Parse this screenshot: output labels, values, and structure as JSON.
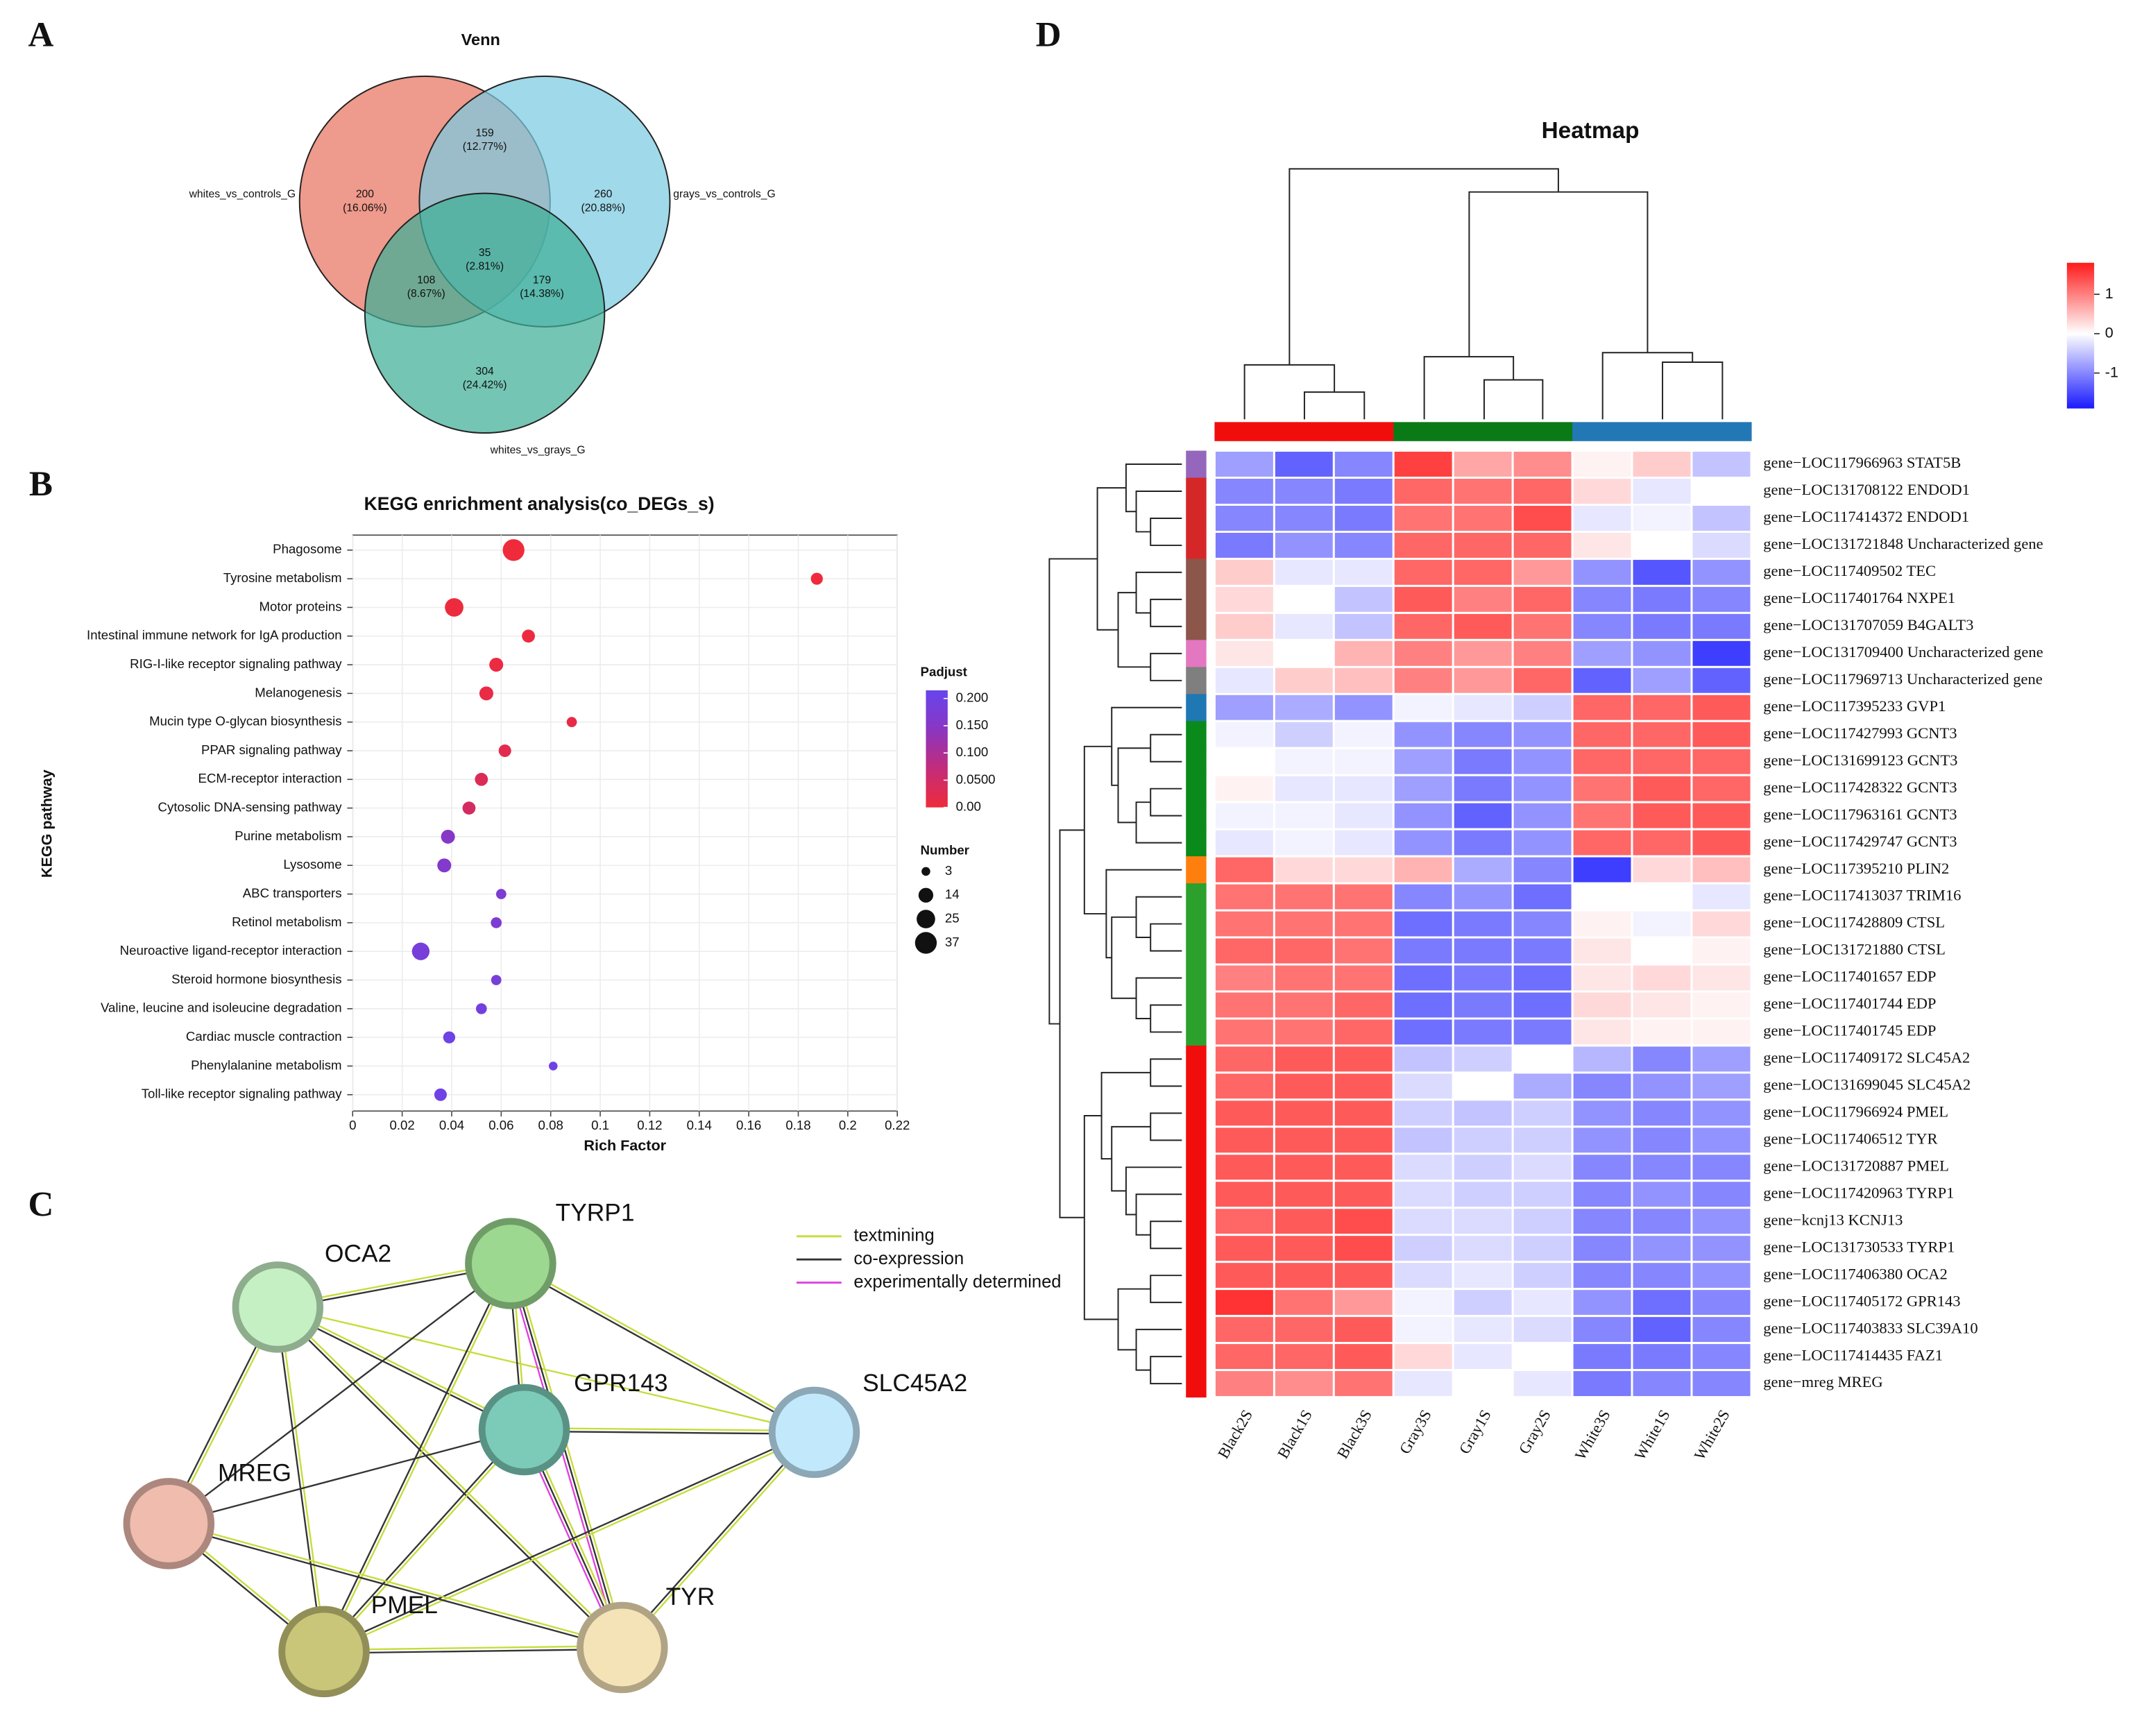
{
  "panel_labels": [
    "A",
    "B",
    "C",
    "D"
  ],
  "chart_data": [
    {
      "type": "venn",
      "title": "Venn",
      "sets": [
        {
          "name": "whites_vs_controls_G",
          "color": "#e8735f"
        },
        {
          "name": "grays_vs_controls_G",
          "color": "#7ccbe0"
        },
        {
          "name": "whites_vs_grays_G",
          "color": "#3fae97"
        }
      ],
      "regions": [
        {
          "count": 200,
          "label": "(16.06%)"
        },
        {
          "count": 159,
          "label": "(12.77%)"
        },
        {
          "count": 260,
          "label": "(20.88%)"
        },
        {
          "count": 35,
          "label": "(2.81%)"
        },
        {
          "count": 108,
          "label": "(8.67%)"
        },
        {
          "count": 179,
          "label": "(14.38%)"
        },
        {
          "count": 304,
          "label": "(24.42%)"
        }
      ]
    },
    {
      "type": "bubble",
      "title": "KEGG enrichment analysis(co_DEGs_s)",
      "y_label": "KEGG pathway",
      "x_label": "Rich Factor",
      "categories": [
        "Phagosome",
        "Tyrosine metabolism",
        "Motor proteins",
        "Intestinal immune network for IgA production",
        "RIG-I-like receptor signaling pathway",
        "Melanogenesis",
        "Mucin type O-glycan biosynthesis",
        "PPAR signaling pathway",
        "ECM-receptor interaction",
        "Cytosolic DNA-sensing pathway",
        "Purine metabolism",
        "Lysosome",
        "ABC transporters",
        "Retinol metabolism",
        "Neuroactive ligand-receptor interaction",
        "Steroid hormone biosynthesis",
        "Valine, leucine and isoleucine degradation",
        "Cardiac muscle contraction",
        "Phenylalanine metabolism",
        "Toll-like receptor signaling pathway"
      ],
      "values": [
        0.065,
        0.1875,
        0.041,
        0.071,
        0.058,
        0.054,
        0.0885,
        0.0615,
        0.052,
        0.047,
        0.0385,
        0.037,
        0.06,
        0.058,
        0.0275,
        0.058,
        0.052,
        0.039,
        0.081,
        0.0355
      ],
      "sizes": [
        37,
        8,
        25,
        10,
        12,
        12,
        5,
        9,
        10,
        10,
        12,
        12,
        5,
        6,
        22,
        5,
        6,
        8,
        3,
        9
      ],
      "padjust": [
        0.0,
        0.002,
        0.003,
        0.005,
        0.008,
        0.01,
        0.012,
        0.02,
        0.03,
        0.045,
        0.15,
        0.16,
        0.17,
        0.17,
        0.18,
        0.18,
        0.19,
        0.2,
        0.2,
        0.2
      ],
      "xlim": [
        0,
        0.22
      ],
      "xticks": [
        0,
        0.02,
        0.04,
        0.06,
        0.08,
        0.1,
        0.12,
        0.14,
        0.16,
        0.18,
        0.2,
        0.22
      ],
      "grid": true,
      "color_title": "Padjust",
      "clim": [
        0,
        0.215
      ],
      "cticks": [
        {
          "value": 0,
          "label": "0.00"
        },
        {
          "value": 0.05,
          "label": "0.0500"
        },
        {
          "value": 0.1,
          "label": "0.100"
        },
        {
          "value": 0.15,
          "label": "0.150"
        },
        {
          "value": 0.2,
          "label": "0.200"
        }
      ],
      "colors": [
        "#ef2b3b",
        "#c22c7a",
        "#8a36c2",
        "#6645ee"
      ],
      "size_title": "Number",
      "size_legend": [
        3,
        14,
        25,
        37
      ]
    },
    {
      "type": "heatmap",
      "title": "Heatmap",
      "columns": [
        "Black2S",
        "Black1S",
        "Black3S",
        "Gray3S",
        "Gray1S",
        "Gray2S",
        "White3S",
        "White1S",
        "White2S"
      ],
      "col_colors": [
        "#f20d0d",
        "#f20d0d",
        "#f20d0d",
        "#0a7a16",
        "#0a7a16",
        "#0a7a16",
        "#2278b5",
        "#2278b5",
        "#2278b5"
      ],
      "rows": [
        "gene−LOC117966963 STAT5B",
        "gene−LOC131708122 ENDOD1",
        "gene−LOC117414372 ENDOD1",
        "gene−LOC131721848 Uncharacterized gene",
        "gene−LOC117409502 TEC",
        "gene−LOC117401764 NXPE1",
        "gene−LOC131707059 B4GALT3",
        "gene−LOC131709400 Uncharacterized gene",
        "gene−LOC117969713 Uncharacterized gene",
        "gene−LOC117395233 GVP1",
        "gene−LOC117427993 GCNT3",
        "gene−LOC131699123 GCNT3",
        "gene−LOC117428322 GCNT3",
        "gene−LOC117963161 GCNT3",
        "gene−LOC117429747 GCNT3",
        "gene−LOC117395210 PLIN2",
        "gene−LOC117413037 TRIM16",
        "gene−LOC117428809 CTSL",
        "gene−LOC131721880 CTSL",
        "gene−LOC117401657 EDP",
        "gene−LOC117401744 EDP",
        "gene−LOC117401745 EDP",
        "gene−LOC117409172 SLC45A2",
        "gene−LOC131699045 SLC45A2",
        "gene−LOC117966924 PMEL",
        "gene−LOC117406512 TYR",
        "gene−LOC131720887 PMEL",
        "gene−LOC117420963 TYRP1",
        "gene−kcnj13 KCNJ13",
        "gene−LOC131730533 TYRP1",
        "gene−LOC117406380 OCA2",
        "gene−LOC117405172 GPR143",
        "gene−LOC117403833 SLC39A10",
        "gene−LOC117414435 FAZ1",
        "gene−mreg MREG"
      ],
      "row_colors": [
        "#9467bd",
        "#d62728",
        "#d62728",
        "#d62728",
        "#8c564b",
        "#8c564b",
        "#8c564b",
        "#e377c2",
        "#7f7f7f",
        "#1f77b4",
        "#0a8a1a",
        "#0a8a1a",
        "#0a8a1a",
        "#0a8a1a",
        "#0a8a1a",
        "#ff7f0e",
        "#2ca02c",
        "#2ca02c",
        "#2ca02c",
        "#2ca02c",
        "#2ca02c",
        "#2ca02c",
        "#f20d0d",
        "#f20d0d",
        "#f20d0d",
        "#f20d0d",
        "#f20d0d",
        "#f20d0d",
        "#f20d0d",
        "#f20d0d",
        "#f20d0d",
        "#f20d0d",
        "#f20d0d",
        "#f20d0d",
        "#f20d0d"
      ],
      "values": [
        [
          -0.8,
          -1.3,
          -1.0,
          1.5,
          0.7,
          0.9,
          0.1,
          0.4,
          -0.5
        ],
        [
          -1.0,
          -1.0,
          -1.1,
          1.2,
          1.1,
          1.2,
          0.3,
          -0.2,
          0.0
        ],
        [
          -1.0,
          -1.0,
          -1.1,
          1.1,
          1.1,
          1.4,
          -0.2,
          -0.1,
          -0.5
        ],
        [
          -1.1,
          -0.9,
          -1.0,
          1.2,
          1.2,
          1.2,
          0.2,
          0.0,
          -0.3
        ],
        [
          0.4,
          -0.2,
          -0.2,
          1.2,
          1.2,
          0.8,
          -0.9,
          -1.4,
          -0.9
        ],
        [
          0.3,
          0.0,
          -0.5,
          1.3,
          1.0,
          1.2,
          -1.0,
          -1.1,
          -1.0
        ],
        [
          0.4,
          -0.2,
          -0.5,
          1.2,
          1.3,
          1.1,
          -1.0,
          -1.1,
          -1.1
        ],
        [
          0.2,
          0.0,
          0.6,
          1.0,
          0.8,
          1.0,
          -0.8,
          -0.9,
          -1.6
        ],
        [
          -0.2,
          0.4,
          0.5,
          1.0,
          0.8,
          1.2,
          -1.3,
          -0.8,
          -1.3
        ],
        [
          -0.8,
          -0.7,
          -0.9,
          -0.1,
          -0.2,
          -0.4,
          1.2,
          1.2,
          1.3
        ],
        [
          -0.1,
          -0.4,
          -0.1,
          -0.9,
          -1.0,
          -0.9,
          1.2,
          1.2,
          1.3
        ],
        [
          0.0,
          -0.1,
          -0.1,
          -0.8,
          -1.1,
          -0.9,
          1.2,
          1.2,
          1.2
        ],
        [
          0.1,
          -0.2,
          -0.2,
          -0.8,
          -1.1,
          -0.9,
          1.1,
          1.3,
          1.2
        ],
        [
          -0.1,
          -0.1,
          -0.2,
          -0.9,
          -1.3,
          -0.9,
          1.1,
          1.3,
          1.3
        ],
        [
          -0.2,
          -0.1,
          -0.2,
          -0.9,
          -1.1,
          -0.9,
          1.2,
          1.2,
          1.3
        ],
        [
          1.2,
          0.3,
          0.3,
          0.6,
          -0.7,
          -1.0,
          -1.6,
          0.3,
          0.5
        ],
        [
          1.1,
          1.1,
          1.1,
          -1.0,
          -0.9,
          -1.2,
          0.0,
          0.0,
          -0.2
        ],
        [
          1.1,
          1.1,
          1.1,
          -1.2,
          -1.1,
          -1.0,
          0.1,
          -0.1,
          0.3
        ],
        [
          1.2,
          1.2,
          1.1,
          -1.1,
          -1.1,
          -1.1,
          0.2,
          0.0,
          0.1
        ],
        [
          1.0,
          1.1,
          1.1,
          -1.2,
          -1.1,
          -1.2,
          0.2,
          0.3,
          0.2
        ],
        [
          1.1,
          1.1,
          1.2,
          -1.2,
          -1.1,
          -1.2,
          0.3,
          0.2,
          0.1
        ],
        [
          1.1,
          1.1,
          1.2,
          -1.2,
          -1.1,
          -1.1,
          0.2,
          0.1,
          0.1
        ],
        [
          1.2,
          1.3,
          1.3,
          -0.5,
          -0.4,
          0.0,
          -0.6,
          -1.0,
          -0.8
        ],
        [
          1.2,
          1.3,
          1.3,
          -0.3,
          0.0,
          -0.7,
          -1.0,
          -0.9,
          -0.8
        ],
        [
          1.3,
          1.3,
          1.3,
          -0.4,
          -0.5,
          -0.4,
          -0.9,
          -1.0,
          -0.9
        ],
        [
          1.3,
          1.3,
          1.3,
          -0.5,
          -0.4,
          -0.4,
          -0.9,
          -1.0,
          -0.9
        ],
        [
          1.3,
          1.3,
          1.3,
          -0.3,
          -0.4,
          -0.3,
          -1.0,
          -1.0,
          -1.0
        ],
        [
          1.3,
          1.3,
          1.3,
          -0.3,
          -0.4,
          -0.4,
          -1.0,
          -0.9,
          -1.0
        ],
        [
          1.2,
          1.3,
          1.4,
          -0.3,
          -0.3,
          -0.4,
          -1.0,
          -1.0,
          -0.9
        ],
        [
          1.3,
          1.3,
          1.4,
          -0.4,
          -0.3,
          -0.4,
          -1.0,
          -0.9,
          -0.9
        ],
        [
          1.3,
          1.3,
          1.3,
          -0.3,
          -0.2,
          -0.4,
          -1.0,
          -1.0,
          -0.9
        ],
        [
          1.6,
          1.1,
          0.8,
          -0.1,
          -0.4,
          -0.2,
          -0.9,
          -1.2,
          -1.0
        ],
        [
          1.2,
          1.2,
          1.3,
          -0.1,
          -0.2,
          -0.3,
          -1.0,
          -1.3,
          -1.0
        ],
        [
          1.2,
          1.2,
          1.3,
          0.3,
          -0.2,
          0.0,
          -1.1,
          -1.1,
          -1.0
        ],
        [
          1.0,
          0.9,
          1.1,
          -0.2,
          0.0,
          -0.2,
          -1.1,
          -1.0,
          -1.0
        ]
      ],
      "clim": [
        -1.9,
        1.8
      ],
      "cticks": [
        1,
        0,
        -1
      ],
      "colors": [
        "#1a1aff",
        "#ffffff",
        "#ff1a1a"
      ]
    }
  ],
  "network": {
    "nodes": [
      {
        "label": "OCA2",
        "color": "#c5f0c4"
      },
      {
        "label": "TYRP1",
        "color": "#9cd88f"
      },
      {
        "label": "GPR143",
        "color": "#7ccbb8"
      },
      {
        "label": "SLC45A2",
        "color": "#c2e8fb"
      },
      {
        "label": "MREG",
        "color": "#efbcad"
      },
      {
        "label": "PMEL",
        "color": "#c9c679"
      },
      {
        "label": "TYR",
        "color": "#f5e3b8"
      }
    ],
    "legend": [
      {
        "label": "textmining",
        "color": "#c6dc3a"
      },
      {
        "label": "co-expression",
        "color": "#333333"
      },
      {
        "label": "experimentally determined",
        "color": "#e040e0"
      }
    ]
  }
}
